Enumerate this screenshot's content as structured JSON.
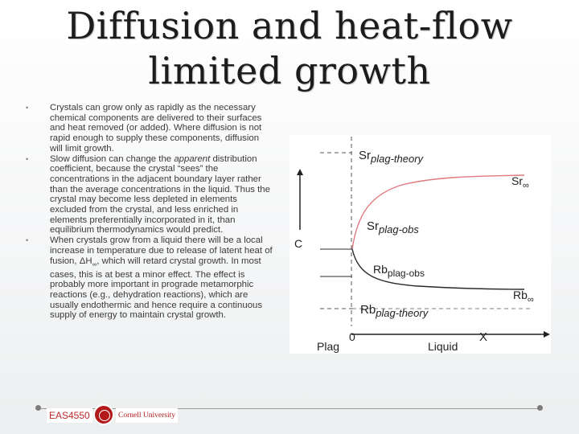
{
  "slide": {
    "title_line1": "Diffusion and heat-flow",
    "title_line2": "limited growth"
  },
  "bullets": [
    {
      "marker": "•",
      "parts": [
        "Crystals can grow only as rapidly as the necessary chemical components are delivered to their surfaces and heat removed (or added). Where diffusion is not rapid enough to supply these components, diffusion will limit growth."
      ]
    },
    {
      "marker": "•",
      "parts": [
        "Slow diffusion can change the ",
        "apparent",
        " distribution coefficient, because the crystal “sees” the concentrations in the adjacent boundary layer rather than the average concentrations in the liquid. Thus the crystal may become less depleted in elements excluded from the crystal, and less enriched in elements preferentially incorporated in it, than equilibrium thermodynamics would predict."
      ]
    },
    {
      "marker": "•",
      "parts": [
        "When crystals grow from a liquid there will be a local increase in temperature due to release of latent heat of fusion, ΔH",
        "∞",
        ", which will retard crystal growth. In most cases, this is at best a minor effect. The effect is probably more important in prograde metamorphic reactions (e.g., dehydration reactions), which are usually endothermic and hence require a continuous supply of energy to maintain crystal growth."
      ]
    }
  ],
  "figure": {
    "y_axis_label": "C",
    "x_axis_label": "X",
    "origin_label": "0",
    "left_region_label": "Plag",
    "right_region_label": "Liquid",
    "labels": {
      "sr_theory_main": "Sr",
      "sr_theory_sub": "plag-theory",
      "sr_inf_main": "Sr",
      "sr_inf_sub": "∞",
      "sr_obs_main": "Sr",
      "sr_obs_sub": "plag-obs",
      "rb_obs_main": "Rb",
      "rb_obs_sub": "plag-obs",
      "rb_inf_main": "Rb",
      "rb_inf_sub": "∞",
      "rb_theory_main": "Rb",
      "rb_theory_sub": "plag-theory"
    },
    "colors": {
      "sr_curve": "#e07a80",
      "rb_curve": "#2a2a2a",
      "dashed": "#555555"
    }
  },
  "footer": {
    "course": "EAS4550",
    "university": "Cornell University"
  }
}
